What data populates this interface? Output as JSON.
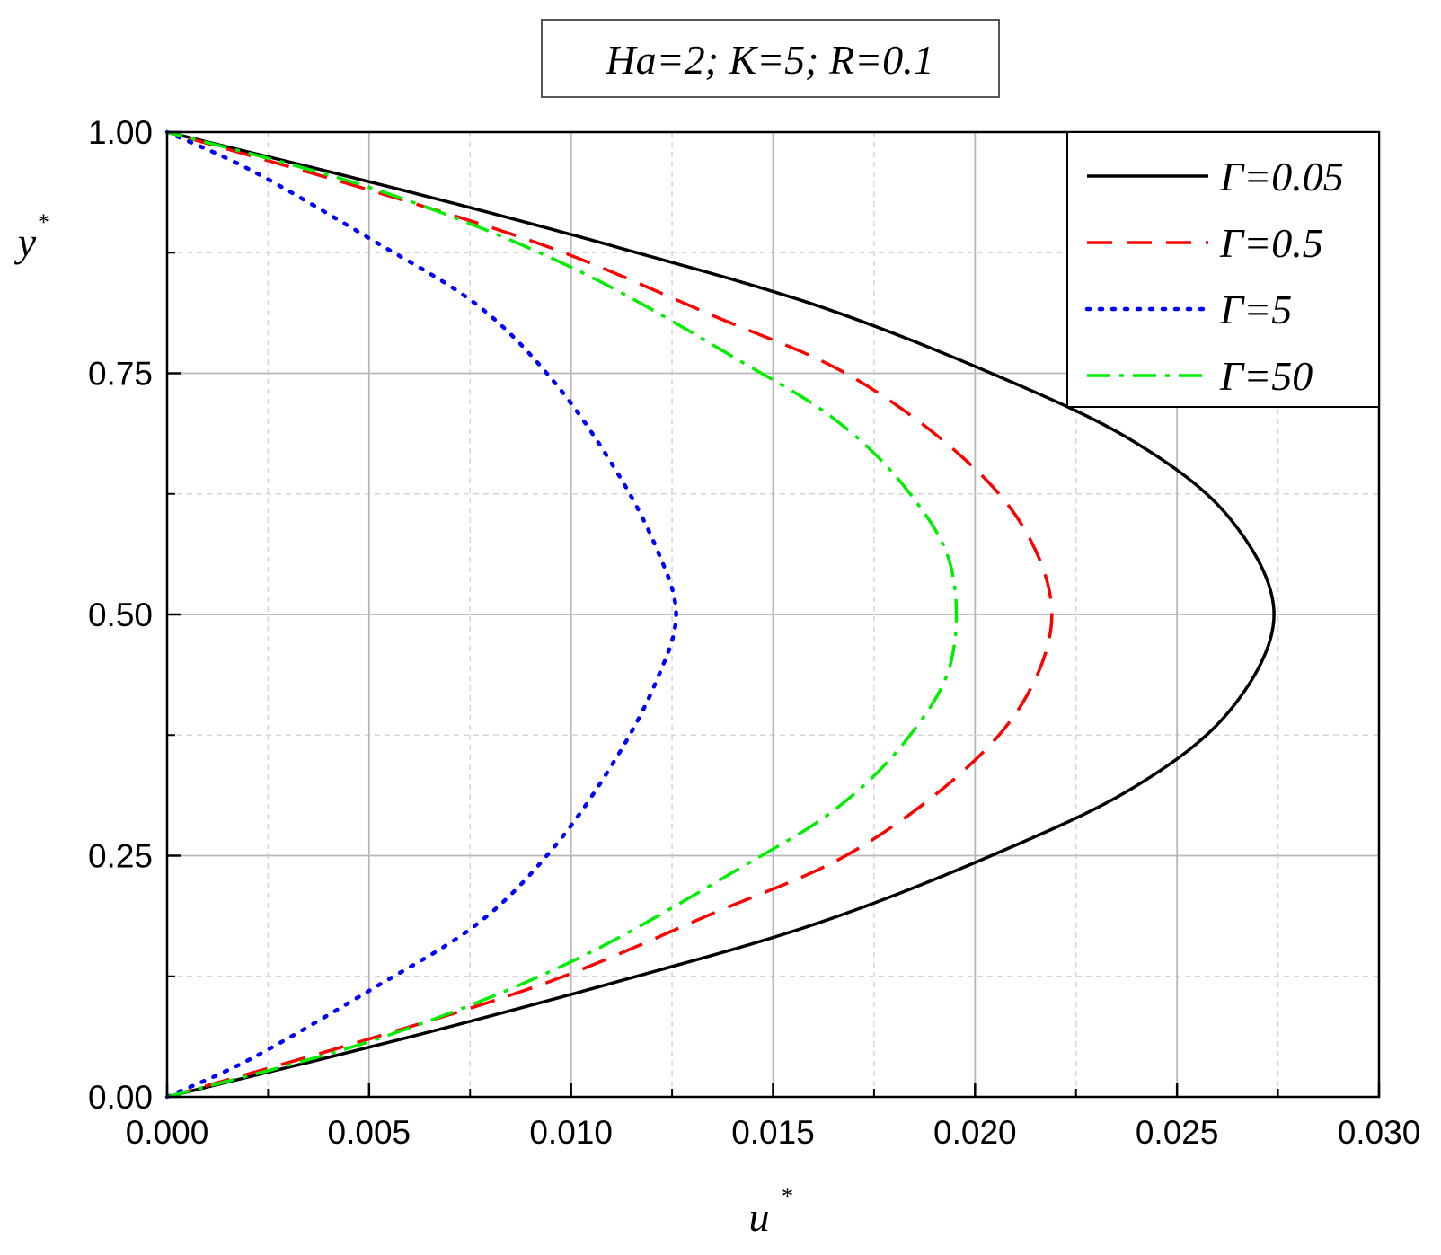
{
  "chart_data": {
    "type": "line",
    "title": "",
    "annotation": "Ha=2; K=5; R=0.1",
    "xlabel": {
      "base": "u",
      "sup": "*"
    },
    "ylabel": {
      "base": "y",
      "sup": "*"
    },
    "xlim": [
      0,
      0.03
    ],
    "ylim": [
      0,
      1
    ],
    "x_ticks": [
      "0.000",
      "0.005",
      "0.010",
      "0.015",
      "0.020",
      "0.025",
      "0.030"
    ],
    "y_ticks": [
      "0.00",
      "0.25",
      "0.50",
      "0.75",
      "1.00"
    ],
    "grid": true,
    "legend_position": "top-right",
    "series": [
      {
        "name": "Γ=0.05",
        "color": "#000000",
        "style": "solid",
        "x": [
          0,
          0.00581,
          0.0112,
          0.0161,
          0.0204,
          0.0239,
          0.0263,
          0.0274,
          0.0263,
          0.0239,
          0.0204,
          0.0161,
          0.0112,
          0.00581,
          0
        ],
        "y": [
          0,
          0.06,
          0.12,
          0.18,
          0.25,
          0.32,
          0.4,
          0.5,
          0.6,
          0.68,
          0.75,
          0.82,
          0.88,
          0.94,
          1.0
        ]
      },
      {
        "name": "Γ=0.5",
        "color": "#ff0000",
        "style": "dashed",
        "x": [
          0,
          0.005,
          0.0095,
          0.0135,
          0.0168,
          0.0195,
          0.0212,
          0.0219,
          0.0212,
          0.0195,
          0.0168,
          0.0135,
          0.0095,
          0.005,
          0
        ],
        "y": [
          0,
          0.06,
          0.12,
          0.19,
          0.25,
          0.33,
          0.41,
          0.5,
          0.59,
          0.67,
          0.75,
          0.81,
          0.88,
          0.94,
          1.0
        ]
      },
      {
        "name": "Γ=5",
        "color": "#0000ff",
        "style": "dotted",
        "x": [
          0,
          0.0021,
          0.005,
          0.0077,
          0.0096,
          0.0111,
          0.0121,
          0.0126,
          0.0121,
          0.0111,
          0.0096,
          0.0077,
          0.005,
          0.0021,
          0
        ],
        "y": [
          0,
          0.04,
          0.11,
          0.18,
          0.26,
          0.35,
          0.43,
          0.5,
          0.57,
          0.65,
          0.74,
          0.82,
          0.89,
          0.96,
          1.0
        ]
      },
      {
        "name": "Γ=50",
        "color": "#00ee00",
        "style": "dashdot",
        "x": [
          0,
          0.0052,
          0.01,
          0.0143,
          0.0166,
          0.0183,
          0.0194,
          0.0194,
          0.0183,
          0.0166,
          0.0143,
          0.01,
          0.0052,
          0
        ],
        "y": [
          0,
          0.06,
          0.14,
          0.24,
          0.3,
          0.37,
          0.45,
          0.55,
          0.63,
          0.7,
          0.76,
          0.86,
          0.94,
          1.0
        ]
      }
    ]
  }
}
